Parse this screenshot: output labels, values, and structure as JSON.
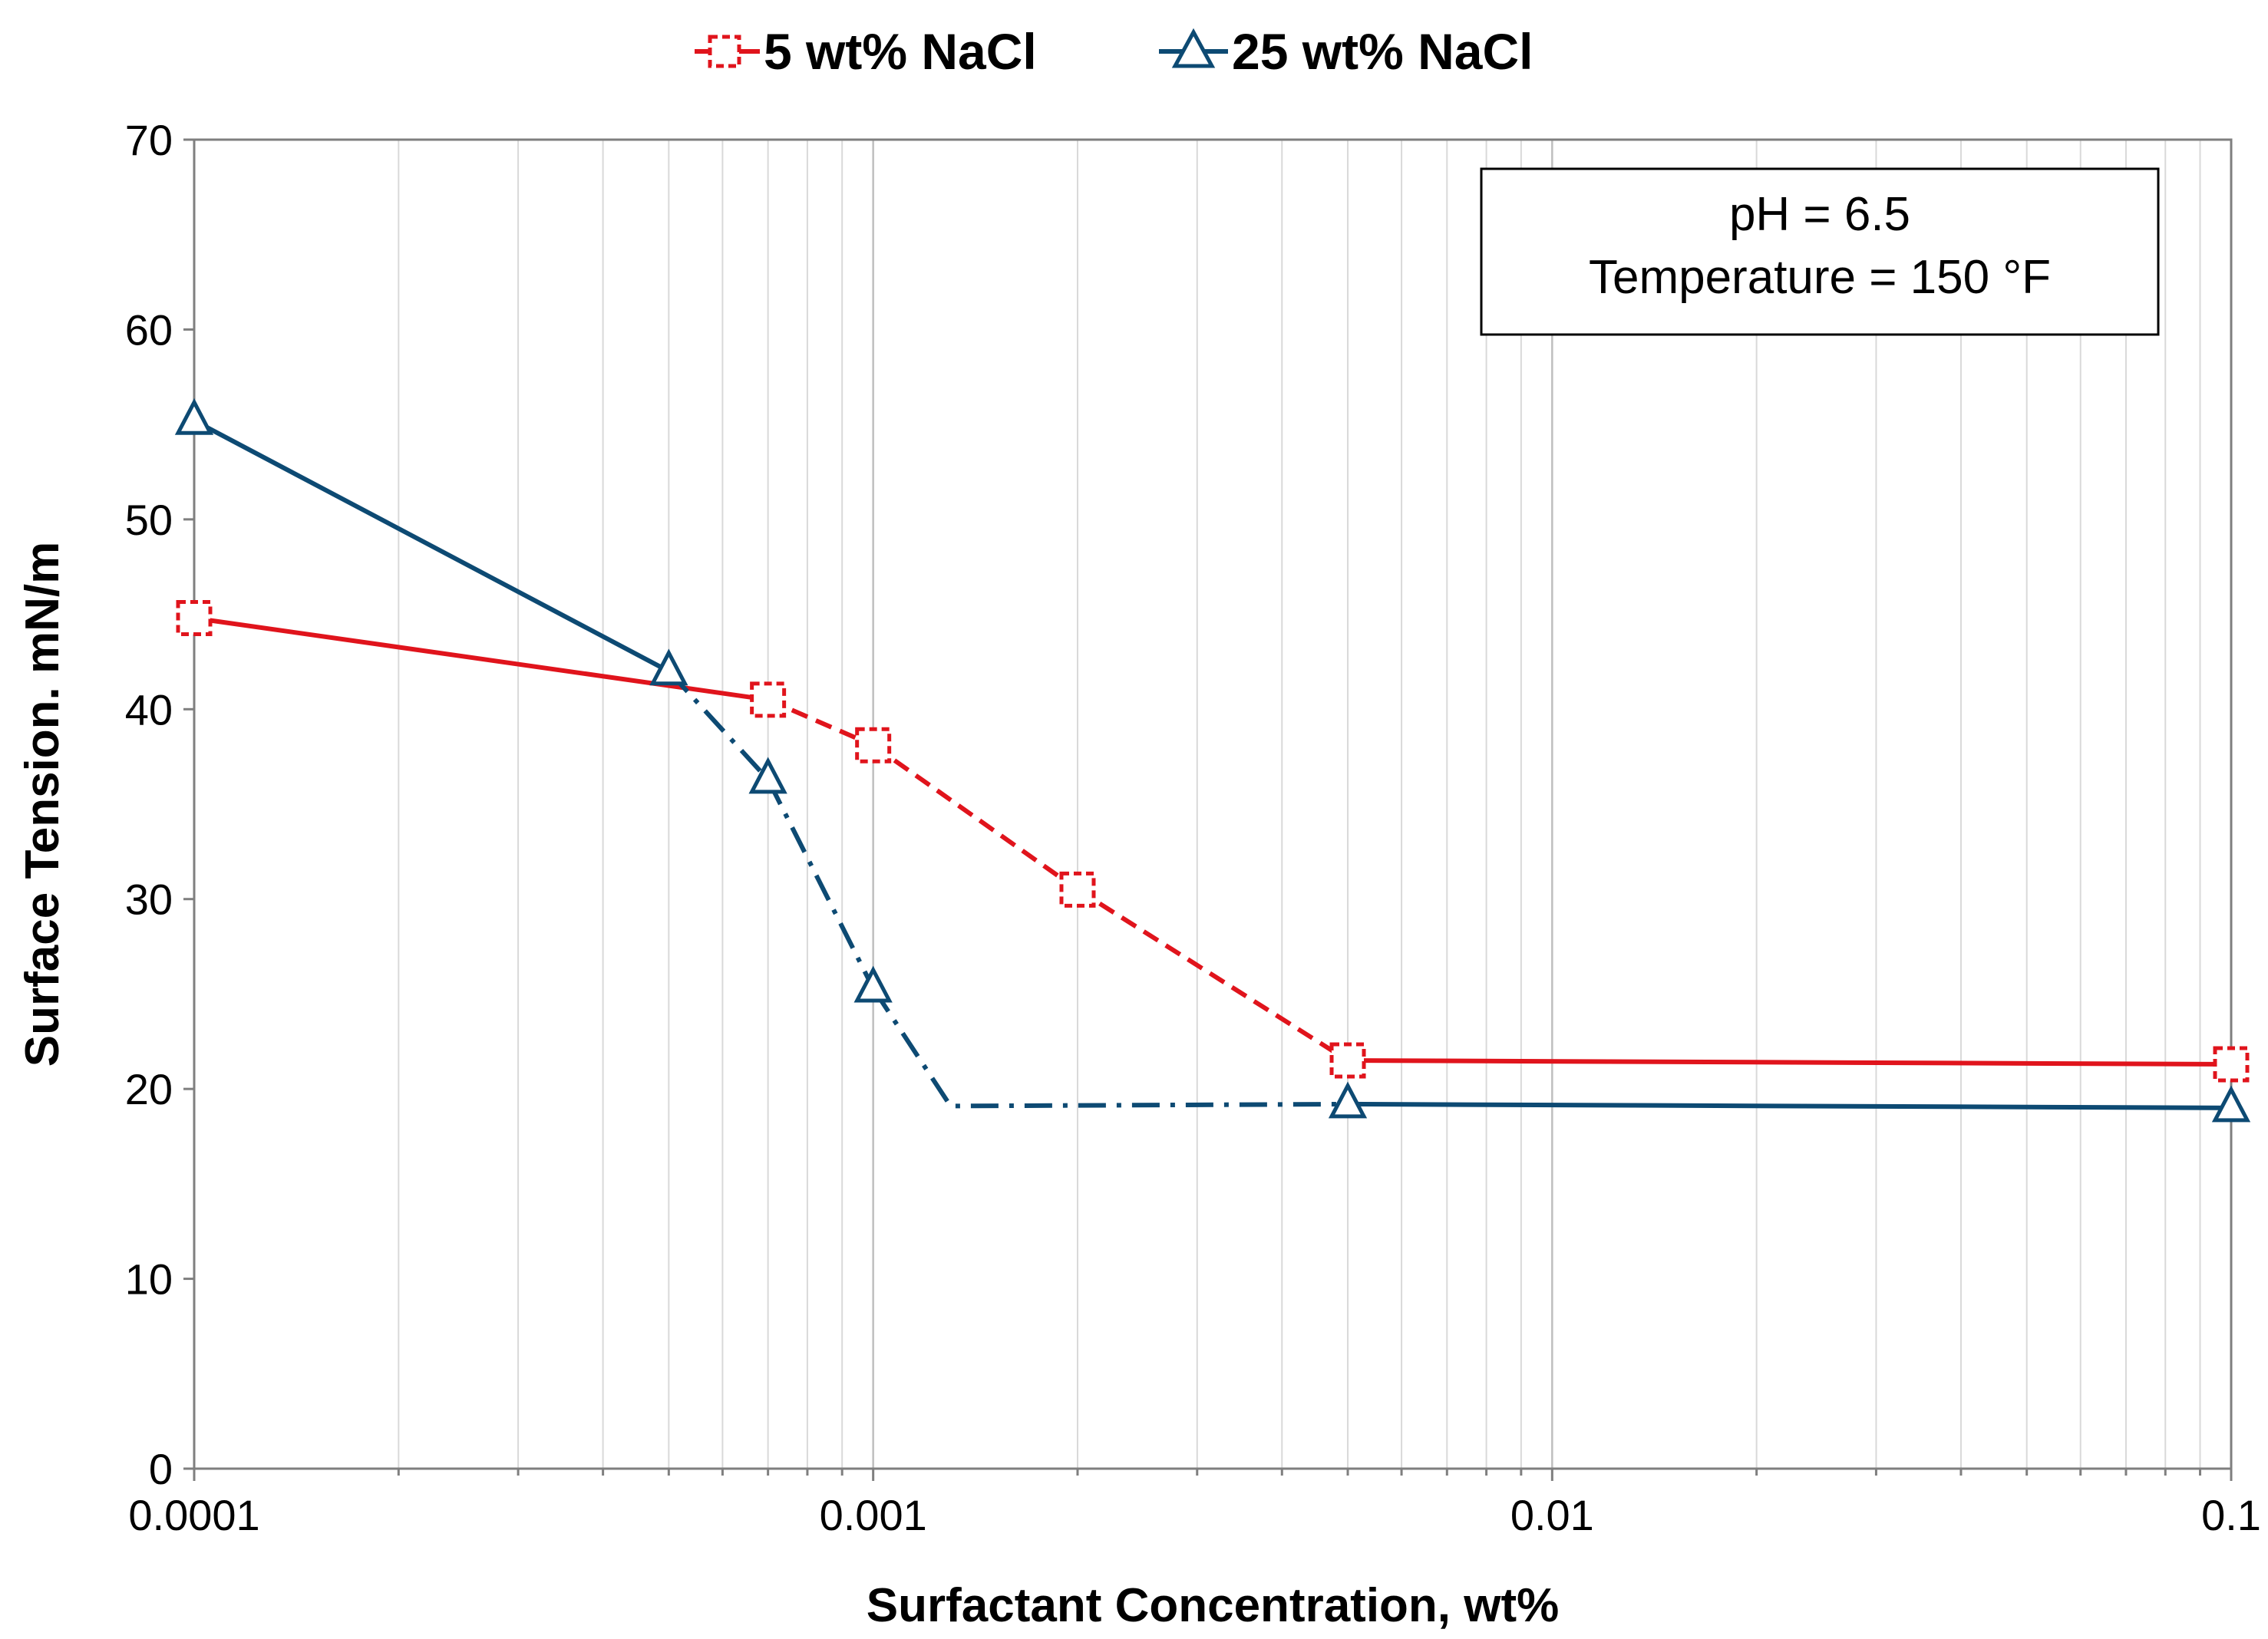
{
  "colors": {
    "red": "#e0141c",
    "blue": "#0d4a73",
    "grid": "#d9d9d9",
    "axis": "#7f7f7f",
    "text": "#000000"
  },
  "chart_data": {
    "type": "line",
    "title": "",
    "xlabel": "Surfactant Concentration, wt%",
    "ylabel": "Surface Tension. mN/m",
    "xscale": "log",
    "xlim": [
      0.0001,
      0.1
    ],
    "ylim": [
      0,
      70
    ],
    "xticks": [
      "0.0001",
      "0.001",
      "0.01",
      "0.1"
    ],
    "yticks": [
      "0",
      "10",
      "20",
      "30",
      "40",
      "50",
      "60",
      "70"
    ],
    "grid": "vertical minor and major log gridlines",
    "legend": {
      "placement": "top-center",
      "entries": [
        "5 wt% NaCl",
        "25 wt% NaCl"
      ]
    },
    "annotation": {
      "line1": "pH = 6.5",
      "line2": "Temperature = 150 °F"
    },
    "series": [
      {
        "name": "5 wt% NaCl",
        "color": "#e0141c",
        "marker": "square-dashed",
        "x": [
          0.0001,
          0.0007,
          0.001,
          0.002,
          0.005,
          0.1
        ],
        "y": [
          44.8,
          40.5,
          38.1,
          30.5,
          21.5,
          21.3
        ],
        "segments": [
          "solid",
          "dashed",
          "dashed",
          "dashed",
          "solid"
        ]
      },
      {
        "name": "25 wt% NaCl",
        "color": "#0d4a73",
        "marker": "triangle",
        "x": [
          0.0001,
          0.0005,
          0.0007,
          0.001,
          0.005,
          0.1
        ],
        "y": [
          55.2,
          42.0,
          36.3,
          25.3,
          19.2,
          19.0
        ],
        "segments": [
          "solid",
          "dashdot",
          "dashdot",
          "dashdot",
          "solid"
        ],
        "dashdot_corner": {
          "x": 0.0013,
          "y": 19.1
        }
      }
    ]
  }
}
